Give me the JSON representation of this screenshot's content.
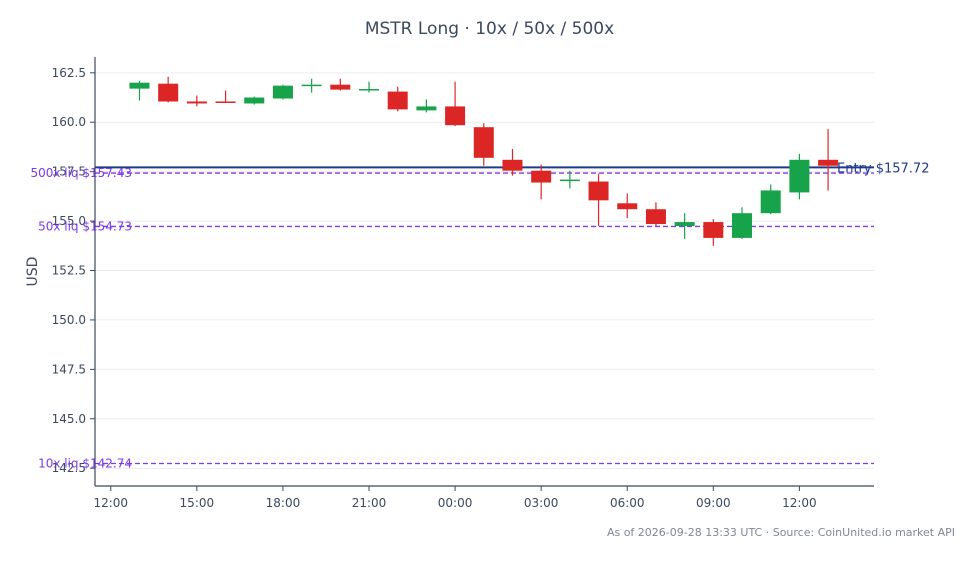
{
  "chart_data": {
    "type": "candlestick",
    "title": "MSTR Long · 10x / 50x / 500x",
    "xlabel": "",
    "ylabel": "USD",
    "ylim": [
      141.6,
      163.3
    ],
    "yticks": [
      142.5,
      145.0,
      147.5,
      150.0,
      152.5,
      155.0,
      157.5,
      160.0,
      162.5
    ],
    "ytick_labels": [
      "142.5",
      "145.0",
      "147.5",
      "150.0",
      "152.5",
      "155.0",
      "157.5",
      "160.0",
      "162.5"
    ],
    "xlim": [
      -0.55,
      26.6
    ],
    "xticks": [
      0,
      3,
      6,
      9,
      12,
      15,
      18,
      21,
      24
    ],
    "xtick_labels": [
      "12:00",
      "15:00",
      "18:00",
      "21:00",
      "00:00",
      "03:00",
      "06:00",
      "09:00",
      "12:00"
    ],
    "grid": true,
    "up_color": "#16a34a",
    "down_color": "#dc2626",
    "candles": [
      {
        "t": 1,
        "o": 161.7,
        "h": 162.1,
        "l": 161.1,
        "c": 162.0
      },
      {
        "t": 2,
        "o": 161.95,
        "h": 162.3,
        "l": 161.0,
        "c": 161.05
      },
      {
        "t": 3,
        "o": 161.05,
        "h": 161.35,
        "l": 160.8,
        "c": 160.95
      },
      {
        "t": 4,
        "o": 161.05,
        "h": 161.6,
        "l": 161.0,
        "c": 161.0
      },
      {
        "t": 5,
        "o": 160.95,
        "h": 161.3,
        "l": 160.9,
        "c": 161.25
      },
      {
        "t": 6,
        "o": 161.2,
        "h": 161.9,
        "l": 161.15,
        "c": 161.85
      },
      {
        "t": 7,
        "o": 161.85,
        "h": 162.2,
        "l": 161.5,
        "c": 161.9
      },
      {
        "t": 8,
        "o": 161.9,
        "h": 162.2,
        "l": 161.6,
        "c": 161.65
      },
      {
        "t": 9,
        "o": 161.62,
        "h": 162.05,
        "l": 161.5,
        "c": 161.68
      },
      {
        "t": 10,
        "o": 161.55,
        "h": 161.8,
        "l": 160.55,
        "c": 160.65
      },
      {
        "t": 11,
        "o": 160.6,
        "h": 161.15,
        "l": 160.5,
        "c": 160.8
      },
      {
        "t": 12,
        "o": 160.8,
        "h": 162.05,
        "l": 159.8,
        "c": 159.85
      },
      {
        "t": 13,
        "o": 159.75,
        "h": 159.95,
        "l": 157.8,
        "c": 158.2
      },
      {
        "t": 14,
        "o": 158.1,
        "h": 158.65,
        "l": 157.3,
        "c": 157.55
      },
      {
        "t": 15,
        "o": 157.55,
        "h": 157.85,
        "l": 156.1,
        "c": 156.95
      },
      {
        "t": 16,
        "o": 157.05,
        "h": 157.55,
        "l": 156.65,
        "c": 157.1
      },
      {
        "t": 17,
        "o": 157.0,
        "h": 157.4,
        "l": 154.75,
        "c": 156.05
      },
      {
        "t": 18,
        "o": 155.9,
        "h": 156.4,
        "l": 155.15,
        "c": 155.6
      },
      {
        "t": 19,
        "o": 155.6,
        "h": 155.95,
        "l": 154.75,
        "c": 154.85
      },
      {
        "t": 20,
        "o": 154.75,
        "h": 155.4,
        "l": 154.1,
        "c": 154.95
      },
      {
        "t": 21,
        "o": 154.95,
        "h": 155.1,
        "l": 153.75,
        "c": 154.15
      },
      {
        "t": 22,
        "o": 154.15,
        "h": 155.7,
        "l": 154.1,
        "c": 155.4
      },
      {
        "t": 23,
        "o": 155.4,
        "h": 156.85,
        "l": 155.35,
        "c": 156.55
      },
      {
        "t": 24,
        "o": 156.45,
        "h": 158.4,
        "l": 156.1,
        "c": 158.1
      },
      {
        "t": 25,
        "o": 158.1,
        "h": 159.65,
        "l": 156.55,
        "c": 157.8
      }
    ],
    "reference_lines": [
      {
        "label": "Entry $157.72",
        "value": 157.72,
        "color": "#1e3a8a",
        "style": "solid"
      },
      {
        "label": "500x liq $157.43",
        "value": 157.43,
        "color": "#7c3aed",
        "style": "dashed"
      },
      {
        "label": "50x liq $154.73",
        "value": 154.73,
        "color": "#7c3aed",
        "style": "dashed"
      },
      {
        "label": "10x liq $142.74",
        "value": 142.74,
        "color": "#7c3aed",
        "style": "dashed"
      }
    ]
  },
  "footer": "As of 2026-09-28 13:33 UTC · Source: CoinUnited.io market API"
}
